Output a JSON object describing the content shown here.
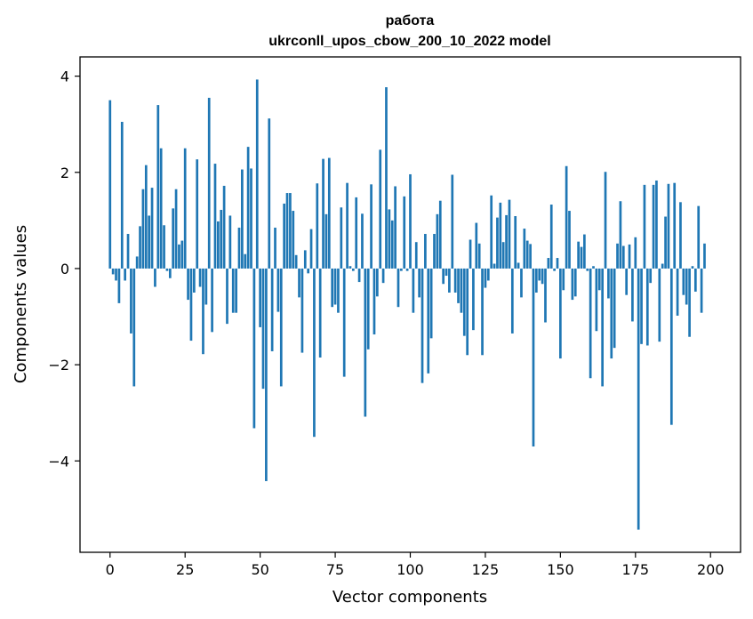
{
  "chart_data": {
    "type": "bar",
    "title": "работа",
    "subtitle": "ukrconll_upos_cbow_200_10_2022 model",
    "xlabel": "Vector components",
    "ylabel": "Components values",
    "xlim": [
      -10,
      210
    ],
    "ylim": [
      -5.9,
      4.4
    ],
    "xticks": [
      0,
      25,
      50,
      75,
      100,
      125,
      150,
      175,
      200
    ],
    "yticks": [
      -4,
      -2,
      0,
      2,
      4
    ],
    "grid": false,
    "legend": "none",
    "bar_color": "#1f77b4",
    "series": [
      {
        "values": [
          3.5,
          -0.12,
          -0.25,
          -0.72,
          3.05,
          -0.25,
          0.72,
          -1.35,
          -2.45,
          0.25,
          0.88,
          1.65,
          2.15,
          1.1,
          1.68,
          -0.38,
          3.4,
          2.5,
          0.9,
          -0.05,
          -0.2,
          1.25,
          1.65,
          0.5,
          0.58,
          2.5,
          -0.65,
          -1.5,
          -0.5,
          2.27,
          -0.38,
          -1.78,
          -0.75,
          3.55,
          -1.32,
          2.18,
          0.98,
          1.22,
          1.72,
          -1.15,
          1.1,
          -0.92,
          -0.92,
          0.85,
          2.06,
          0.3,
          2.53,
          2.08,
          -3.32,
          3.93,
          -1.22,
          -2.5,
          -4.42,
          3.12,
          -1.72,
          0.85,
          -0.9,
          -2.45,
          1.35,
          1.57,
          1.57,
          1.2,
          0.28,
          -0.6,
          -1.75,
          0.38,
          -0.1,
          0.82,
          -3.5,
          1.77,
          -1.85,
          2.28,
          1.13,
          2.3,
          -0.8,
          -0.75,
          -0.92,
          1.27,
          -2.25,
          1.78,
          0.05,
          -0.05,
          1.48,
          -0.28,
          1.14,
          -3.08,
          -1.68,
          1.75,
          -1.37,
          -0.58,
          2.47,
          -0.3,
          3.77,
          1.23,
          1.0,
          1.71,
          -0.8,
          -0.05,
          1.5,
          -0.05,
          1.96,
          -0.92,
          0.55,
          -0.6,
          -2.38,
          0.72,
          -2.18,
          -1.45,
          0.72,
          1.13,
          1.41,
          -0.32,
          -0.15,
          -0.5,
          1.95,
          -0.5,
          -0.72,
          -0.92,
          -1.4,
          -1.8,
          0.6,
          -1.28,
          0.95,
          0.52,
          -1.8,
          -0.4,
          -0.25,
          1.52,
          0.1,
          1.06,
          1.37,
          0.55,
          1.11,
          1.43,
          -1.35,
          1.09,
          0.12,
          -0.6,
          0.83,
          0.58,
          0.51,
          -3.7,
          -0.5,
          -0.25,
          -0.32,
          -1.12,
          0.22,
          1.33,
          -0.05,
          0.22,
          -1.87,
          -0.45,
          2.13,
          1.2,
          -0.65,
          -0.58,
          0.56,
          0.45,
          0.71,
          -0.05,
          -2.28,
          0.05,
          -1.3,
          -0.45,
          -2.45,
          2.01,
          -0.62,
          -1.87,
          -1.65,
          0.52,
          1.4,
          0.47,
          -0.55,
          0.5,
          -1.1,
          0.65,
          -5.43,
          -1.57,
          1.74,
          -1.6,
          -0.3,
          1.74,
          1.83,
          -1.52,
          0.1,
          1.08,
          1.76,
          -3.25,
          1.78,
          -0.98,
          1.38,
          -0.55,
          -0.75,
          -1.42,
          0.05,
          -0.48,
          1.3,
          -0.92,
          0.52
        ]
      }
    ]
  }
}
